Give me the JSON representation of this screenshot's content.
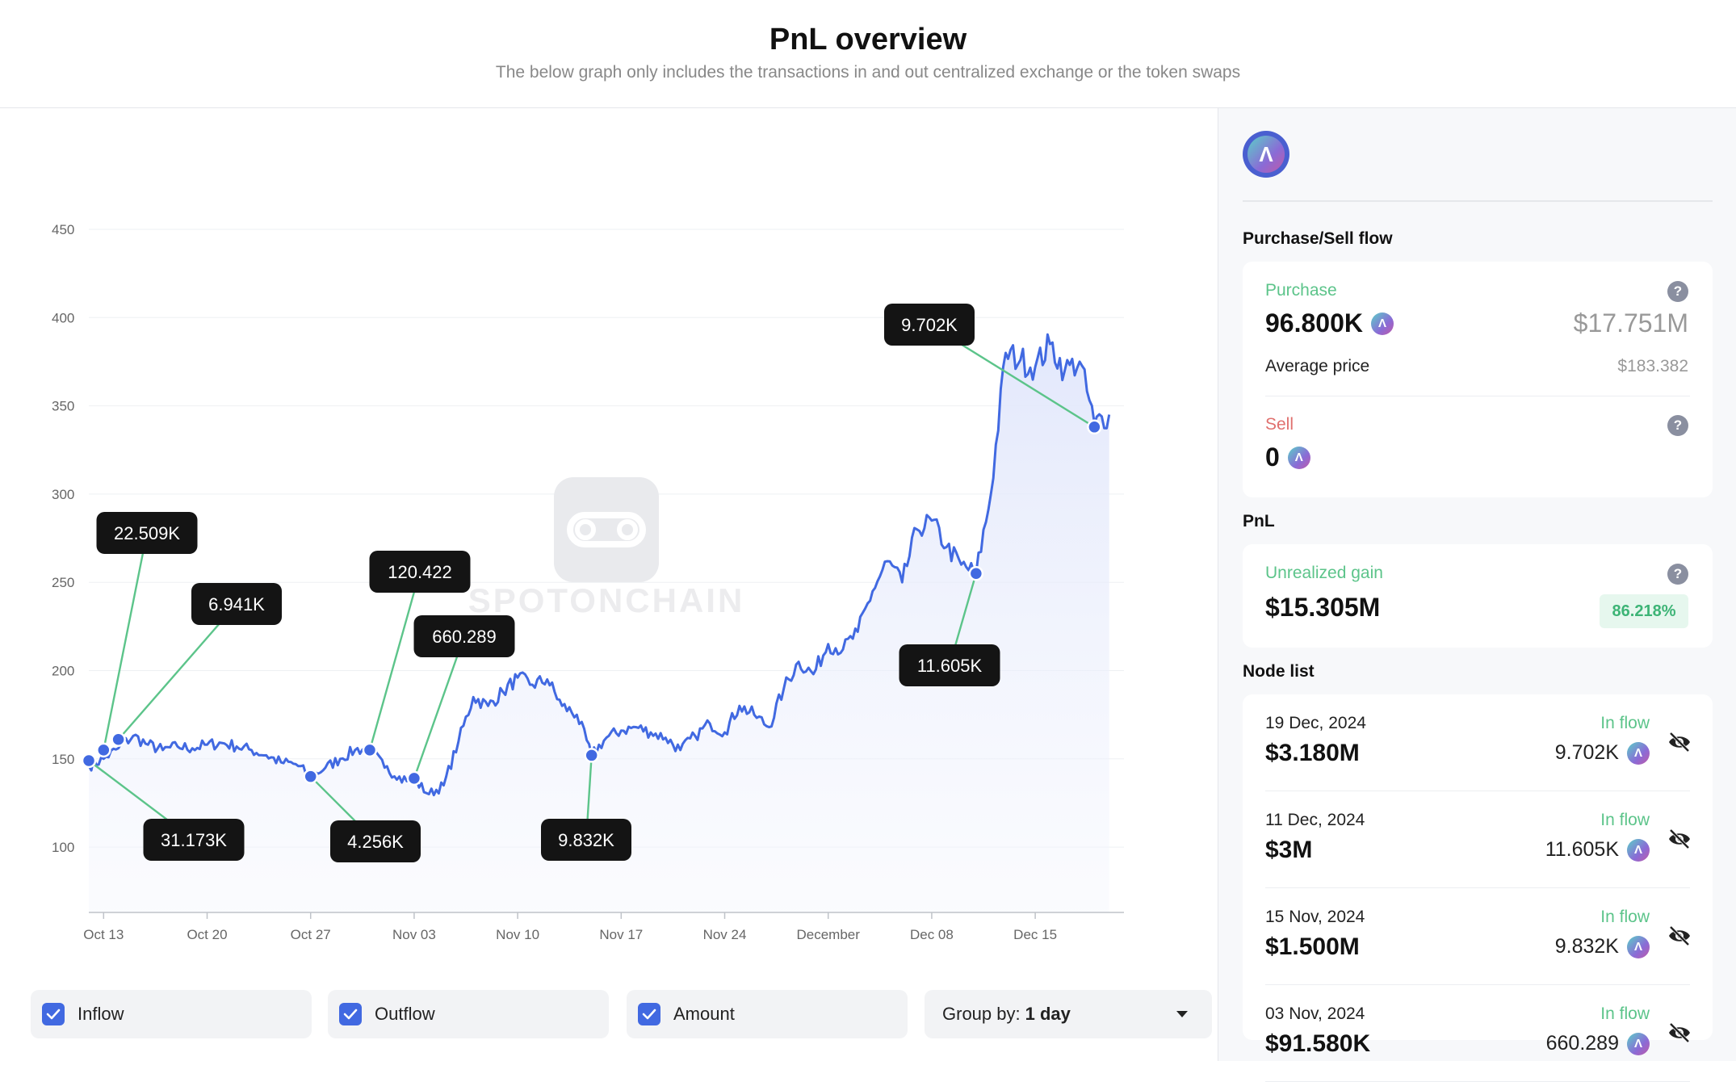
{
  "header": {
    "title": "PnL overview",
    "subtitle": "The below graph only includes the transactions in and out centralized exchange or the token swaps"
  },
  "watermark": "SPOTONCHAIN",
  "chart_data": {
    "type": "area",
    "y_ticks": [
      "450",
      "400",
      "350",
      "300",
      "250",
      "200",
      "150",
      "100"
    ],
    "x_ticks": [
      "Oct 13",
      "Oct 20",
      "Oct 27",
      "Nov 03",
      "Nov 10",
      "Nov 17",
      "Nov 24",
      "December",
      "Dec 08",
      "Dec 15"
    ],
    "ylim": [
      63,
      482
    ],
    "grid": true,
    "line_color": "#4169e1",
    "annotation_color": "#5cc48a",
    "x_start": "2024-10-12",
    "x_end": "2024-12-21",
    "price_series": [
      [
        "2024-10-12",
        146
      ],
      [
        "2024-10-13",
        150
      ],
      [
        "2024-10-14",
        156
      ],
      [
        "2024-10-15",
        163
      ],
      [
        "2024-10-16",
        158
      ],
      [
        "2024-10-17",
        155
      ],
      [
        "2024-10-18",
        157
      ],
      [
        "2024-10-19",
        156
      ],
      [
        "2024-10-20",
        158
      ],
      [
        "2024-10-21",
        159
      ],
      [
        "2024-10-22",
        157
      ],
      [
        "2024-10-23",
        155
      ],
      [
        "2024-10-24",
        152
      ],
      [
        "2024-10-25",
        148
      ],
      [
        "2024-10-26",
        147
      ],
      [
        "2024-10-27",
        140
      ],
      [
        "2024-10-28",
        145
      ],
      [
        "2024-10-29",
        150
      ],
      [
        "2024-10-30",
        155
      ],
      [
        "2024-10-31",
        156
      ],
      [
        "2024-11-01",
        145
      ],
      [
        "2024-11-02",
        140
      ],
      [
        "2024-11-03",
        138
      ],
      [
        "2024-11-04",
        130
      ],
      [
        "2024-11-05",
        135
      ],
      [
        "2024-11-06",
        160
      ],
      [
        "2024-11-07",
        185
      ],
      [
        "2024-11-08",
        180
      ],
      [
        "2024-11-09",
        188
      ],
      [
        "2024-11-10",
        196
      ],
      [
        "2024-11-11",
        192
      ],
      [
        "2024-11-12",
        195
      ],
      [
        "2024-11-13",
        180
      ],
      [
        "2024-11-14",
        175
      ],
      [
        "2024-11-15",
        152
      ],
      [
        "2024-11-16",
        162
      ],
      [
        "2024-11-17",
        166
      ],
      [
        "2024-11-18",
        168
      ],
      [
        "2024-11-19",
        165
      ],
      [
        "2024-11-20",
        162
      ],
      [
        "2024-11-21",
        155
      ],
      [
        "2024-11-22",
        163
      ],
      [
        "2024-11-23",
        170
      ],
      [
        "2024-11-24",
        165
      ],
      [
        "2024-11-25",
        180
      ],
      [
        "2024-11-26",
        175
      ],
      [
        "2024-11-27",
        168
      ],
      [
        "2024-11-28",
        190
      ],
      [
        "2024-11-29",
        205
      ],
      [
        "2024-11-30",
        198
      ],
      [
        "2024-12-01",
        215
      ],
      [
        "2024-12-02",
        212
      ],
      [
        "2024-12-03",
        222
      ],
      [
        "2024-12-04",
        245
      ],
      [
        "2024-12-05",
        262
      ],
      [
        "2024-12-06",
        250
      ],
      [
        "2024-12-07",
        280
      ],
      [
        "2024-12-08",
        285
      ],
      [
        "2024-12-09",
        270
      ],
      [
        "2024-12-10",
        260
      ],
      [
        "2024-12-11",
        255
      ],
      [
        "2024-12-12",
        300
      ],
      [
        "2024-12-13",
        380
      ],
      [
        "2024-12-14",
        376
      ],
      [
        "2024-12-15",
        372
      ],
      [
        "2024-12-16",
        385
      ],
      [
        "2024-12-17",
        370
      ],
      [
        "2024-12-18",
        375
      ],
      [
        "2024-12-19",
        340
      ],
      [
        "2024-12-20",
        345
      ]
    ],
    "annotations": [
      {
        "label": "31.173K",
        "date": "2024-10-12",
        "price": 149
      },
      {
        "label": "22.509K",
        "date": "2024-10-13",
        "price": 155
      },
      {
        "label": "6.941K",
        "date": "2024-10-14",
        "price": 161
      },
      {
        "label": "4.256K",
        "date": "2024-10-27",
        "price": 140
      },
      {
        "label": "120.422",
        "date": "2024-10-31",
        "price": 155
      },
      {
        "label": "660.289",
        "date": "2024-11-03",
        "price": 139
      },
      {
        "label": "9.832K",
        "date": "2024-11-15",
        "price": 152
      },
      {
        "label": "11.605K",
        "date": "2024-12-11",
        "price": 255
      },
      {
        "label": "9.702K",
        "date": "2024-12-19",
        "price": 338
      }
    ]
  },
  "controls": {
    "inflow_label": "Inflow",
    "outflow_label": "Outflow",
    "amount_label": "Amount",
    "groupby_prefix": "Group by:",
    "groupby_value": "1 day"
  },
  "sidebar": {
    "token_glyph": "Λ",
    "purchase_sell_title": "Purchase/Sell flow",
    "purchase": {
      "label": "Purchase",
      "amount": "96.800K",
      "usd": "$17.751M",
      "avg_label": "Average price",
      "avg_value": "$183.382"
    },
    "sell": {
      "label": "Sell",
      "amount": "0"
    },
    "pnl_title": "PnL",
    "pnl": {
      "label": "Unrealized gain",
      "value": "$15.305M",
      "percent": "86.218%"
    },
    "node_list_title": "Node list",
    "nodes": [
      {
        "date": "19 Dec, 2024",
        "flow": "In flow",
        "usd": "$3.180M",
        "amount": "9.702K"
      },
      {
        "date": "11 Dec, 2024",
        "flow": "In flow",
        "usd": "$3M",
        "amount": "11.605K"
      },
      {
        "date": "15 Nov, 2024",
        "flow": "In flow",
        "usd": "$1.500M",
        "amount": "9.832K"
      },
      {
        "date": "03 Nov, 2024",
        "flow": "In flow",
        "usd": "$91.580K",
        "amount": "660.289"
      }
    ]
  }
}
